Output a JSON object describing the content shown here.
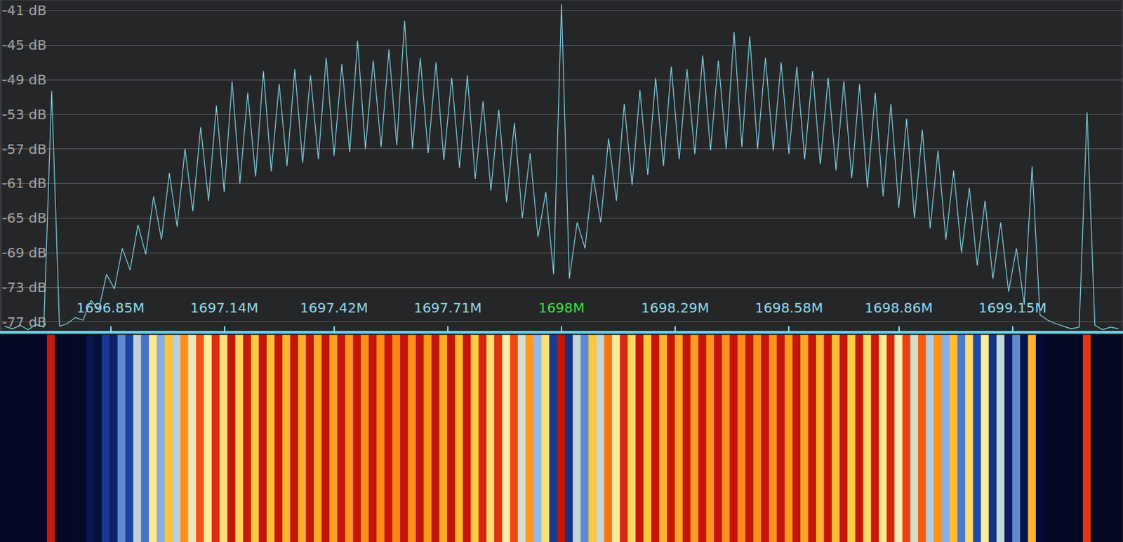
{
  "chart_data": {
    "type": "line",
    "x": [
      1696.58,
      1696.6,
      1696.62,
      1696.64,
      1696.66,
      1696.68,
      1696.7,
      1696.72,
      1696.74,
      1696.76,
      1696.78,
      1696.8,
      1696.82,
      1696.84,
      1696.86,
      1696.88,
      1696.9,
      1696.92,
      1696.94,
      1696.96,
      1696.98,
      1697.0,
      1697.02,
      1697.04,
      1697.06,
      1697.08,
      1697.1,
      1697.12,
      1697.14,
      1697.16,
      1697.18,
      1697.2,
      1697.22,
      1697.24,
      1697.26,
      1697.28,
      1697.3,
      1697.32,
      1697.34,
      1697.36,
      1697.38,
      1697.4,
      1697.42,
      1697.44,
      1697.46,
      1697.48,
      1697.5,
      1697.52,
      1697.54,
      1697.56,
      1697.58,
      1697.6,
      1697.62,
      1697.64,
      1697.66,
      1697.68,
      1697.7,
      1697.72,
      1697.74,
      1697.76,
      1697.78,
      1697.8,
      1697.82,
      1697.84,
      1697.86,
      1697.88,
      1697.9,
      1697.92,
      1697.94,
      1697.96,
      1697.98,
      1698.0,
      1698.02,
      1698.04,
      1698.06,
      1698.08,
      1698.1,
      1698.12,
      1698.14,
      1698.16,
      1698.18,
      1698.2,
      1698.22,
      1698.24,
      1698.26,
      1698.28,
      1698.3,
      1698.32,
      1698.34,
      1698.36,
      1698.38,
      1698.4,
      1698.42,
      1698.44,
      1698.46,
      1698.48,
      1698.5,
      1698.52,
      1698.54,
      1698.56,
      1698.58,
      1698.6,
      1698.62,
      1698.64,
      1698.66,
      1698.68,
      1698.7,
      1698.72,
      1698.74,
      1698.76,
      1698.78,
      1698.8,
      1698.82,
      1698.84,
      1698.86,
      1698.88,
      1698.9,
      1698.92,
      1698.94,
      1698.96,
      1698.98,
      1699.0,
      1699.02,
      1699.04,
      1699.06,
      1699.08,
      1699.1,
      1699.12,
      1699.14,
      1699.16,
      1699.18,
      1699.2,
      1699.22,
      1699.24,
      1699.26,
      1699.28,
      1699.3,
      1699.32,
      1699.34,
      1699.36,
      1699.38,
      1699.4,
      1699.42
    ],
    "values": [
      -77.5,
      -77.8,
      -77.4,
      -77.9,
      -77.3,
      -77.6,
      -50.3,
      -77.5,
      -77.2,
      -76.5,
      -76.8,
      -74.5,
      -75.6,
      -71.5,
      -73.2,
      -68.5,
      -71.0,
      -65.8,
      -69.2,
      -62.5,
      -67.5,
      -59.8,
      -66.0,
      -57.0,
      -64.2,
      -54.5,
      -63.0,
      -52.0,
      -62.0,
      -49.2,
      -61.0,
      -50.5,
      -60.2,
      -48.0,
      -59.6,
      -49.5,
      -59.0,
      -47.8,
      -58.6,
      -48.5,
      -58.2,
      -46.5,
      -57.8,
      -47.2,
      -57.4,
      -44.5,
      -57.0,
      -46.8,
      -56.8,
      -45.5,
      -56.6,
      -42.2,
      -57.0,
      -46.5,
      -57.5,
      -47.0,
      -58.3,
      -48.8,
      -59.2,
      -48.5,
      -60.5,
      -51.5,
      -61.8,
      -52.5,
      -63.2,
      -54.0,
      -65.0,
      -57.5,
      -67.2,
      -62.0,
      -71.5,
      -40.3,
      -72.0,
      -65.5,
      -68.5,
      -60.0,
      -65.5,
      -55.8,
      -63.0,
      -51.8,
      -61.2,
      -50.2,
      -60.0,
      -48.8,
      -59.0,
      -47.5,
      -58.2,
      -47.8,
      -57.6,
      -46.2,
      -57.2,
      -46.8,
      -57.0,
      -43.5,
      -56.8,
      -44.0,
      -57.0,
      -46.5,
      -57.2,
      -47.0,
      -57.6,
      -47.5,
      -58.2,
      -48.0,
      -58.8,
      -48.8,
      -59.5,
      -49.2,
      -60.4,
      -49.5,
      -61.5,
      -50.5,
      -62.5,
      -51.8,
      -63.8,
      -53.5,
      -65.0,
      -54.8,
      -66.2,
      -57.2,
      -67.5,
      -59.5,
      -69.0,
      -61.5,
      -70.5,
      -63.0,
      -72.0,
      -65.5,
      -73.5,
      -68.5,
      -75.0,
      -59.0,
      -76.2,
      -76.8,
      -77.2,
      -77.5,
      -77.8,
      -77.6,
      -52.8,
      -77.4,
      -77.9,
      -77.6,
      -77.8
    ],
    "color": "#7fd2e4",
    "xlim": [
      1696.57,
      1699.43
    ],
    "ylim": [
      -78.2,
      -39.8
    ],
    "xticks": [
      {
        "value": 1696.85,
        "label": "1696.85M"
      },
      {
        "value": 1697.14,
        "label": "1697.14M"
      },
      {
        "value": 1697.42,
        "label": "1697.42M"
      },
      {
        "value": 1697.71,
        "label": "1697.71M"
      },
      {
        "value": 1698,
        "label": "1698M"
      },
      {
        "value": 1698.29,
        "label": "1698.29M"
      },
      {
        "value": 1698.58,
        "label": "1698.58M"
      },
      {
        "value": 1698.86,
        "label": "1698.86M"
      },
      {
        "value": 1699.15,
        "label": "1699.15M"
      }
    ],
    "yticks": [
      {
        "value": -41,
        "label": "-41 dB"
      },
      {
        "value": -45,
        "label": "-45 dB"
      },
      {
        "value": -49,
        "label": "-49 dB"
      },
      {
        "value": -53,
        "label": "-53 dB"
      },
      {
        "value": -57,
        "label": "-57 dB"
      },
      {
        "value": -61,
        "label": "-61 dB"
      },
      {
        "value": -65,
        "label": "-65 dB"
      },
      {
        "value": -69,
        "label": "-69 dB"
      },
      {
        "value": -73,
        "label": "-73 dB"
      },
      {
        "value": -77,
        "label": "-77 dB"
      }
    ],
    "grid": true,
    "waterfall_color_range": [
      -77,
      -50
    ]
  }
}
